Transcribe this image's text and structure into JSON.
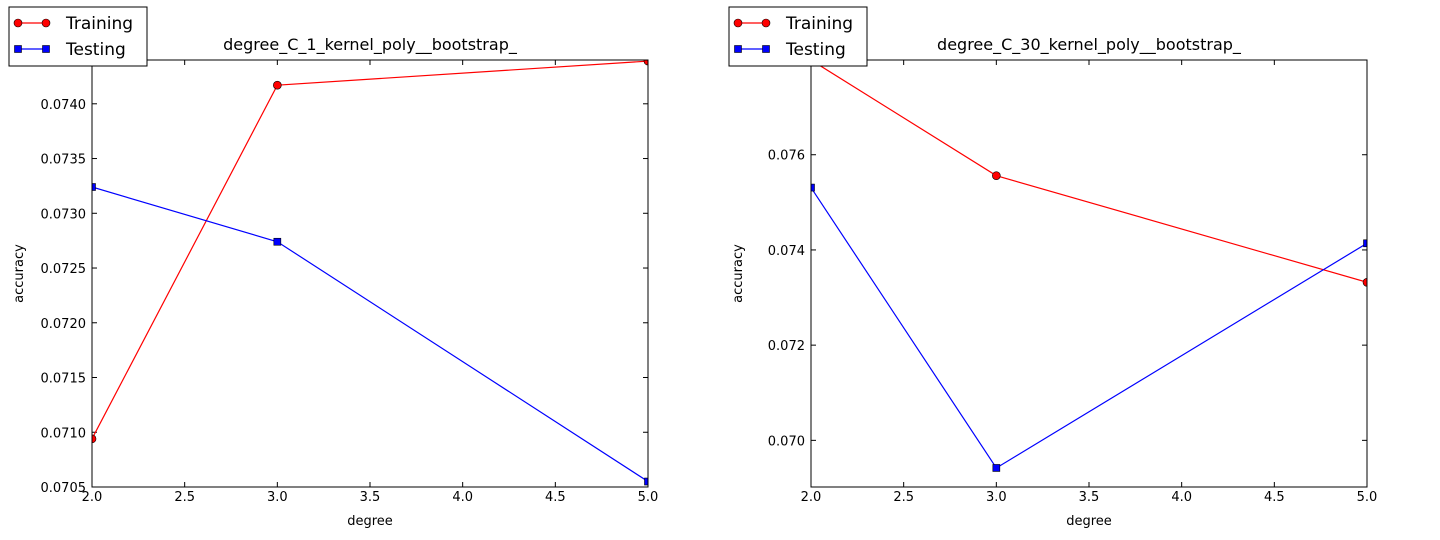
{
  "chart_data": [
    {
      "type": "line",
      "title": "degree_C_1_kernel_poly__bootstrap_",
      "xlabel": "degree",
      "ylabel": "accuracy",
      "xlim": [
        2.0,
        5.0
      ],
      "ylim": [
        0.0705,
        0.0744
      ],
      "xticks": [
        2.0,
        2.5,
        3.0,
        3.5,
        4.0,
        4.5,
        5.0
      ],
      "xtick_labels": [
        "2.0",
        "2.5",
        "3.0",
        "3.5",
        "4.0",
        "4.5",
        "5.0"
      ],
      "yticks": [
        0.0705,
        0.071,
        0.0715,
        0.072,
        0.0725,
        0.073,
        0.0735,
        0.074
      ],
      "ytick_labels": [
        "0.0705",
        "0.0710",
        "0.0715",
        "0.0720",
        "0.0725",
        "0.0730",
        "0.0735",
        "0.0740"
      ],
      "grid": false,
      "legend_position": "top-left",
      "series": [
        {
          "name": "Training",
          "color": "#ff0000",
          "marker": "circle",
          "x": [
            2.0,
            3.0,
            5.0
          ],
          "values": [
            0.07094,
            0.07417,
            0.07439
          ]
        },
        {
          "name": "Testing",
          "color": "#0000ff",
          "marker": "square",
          "x": [
            2.0,
            3.0,
            5.0
          ],
          "values": [
            0.07324,
            0.07274,
            0.07055
          ]
        }
      ]
    },
    {
      "type": "line",
      "title": "degree_C_30_kernel_poly__bootstrap_",
      "xlabel": "degree",
      "ylabel": "accuracy",
      "xlim": [
        2.0,
        5.0
      ],
      "ylim": [
        0.06902,
        0.07799
      ],
      "xticks": [
        2.0,
        2.5,
        3.0,
        3.5,
        4.0,
        4.5,
        5.0
      ],
      "xtick_labels": [
        "2.0",
        "2.5",
        "3.0",
        "3.5",
        "4.0",
        "4.5",
        "5.0"
      ],
      "yticks": [
        0.07,
        0.072,
        0.074,
        0.076
      ],
      "ytick_labels": [
        "0.070",
        "0.072",
        "0.074",
        "0.076"
      ],
      "grid": false,
      "legend_position": "top-left",
      "series": [
        {
          "name": "Training",
          "color": "#ff0000",
          "marker": "circle",
          "x": [
            2.0,
            3.0,
            5.0
          ],
          "values": [
            0.07799,
            0.07556,
            0.07332
          ]
        },
        {
          "name": "Testing",
          "color": "#0000ff",
          "marker": "square",
          "x": [
            2.0,
            3.0,
            5.0
          ],
          "values": [
            0.07531,
            0.06942,
            0.07414
          ]
        }
      ]
    }
  ]
}
